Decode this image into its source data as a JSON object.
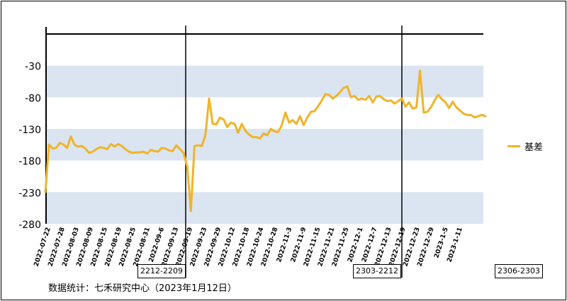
{
  "chart_data": {
    "type": "line",
    "series": [
      {
        "name": "基差",
        "color": "#f0b429",
        "values": [
          -230,
          -155,
          -161,
          -160,
          -152,
          -155,
          -160,
          -142,
          -155,
          -158,
          -157,
          -161,
          -168,
          -166,
          -162,
          -159,
          -160,
          -162,
          -154,
          -158,
          -154,
          -157,
          -162,
          -166,
          -168,
          -167,
          -167,
          -166,
          -169,
          -163,
          -165,
          -166,
          -160,
          -161,
          -164,
          -165,
          -156,
          -162,
          -168,
          -190,
          -260,
          -157,
          -156,
          -157,
          -140,
          -82,
          -122,
          -123,
          -112,
          -115,
          -127,
          -120,
          -122,
          -136,
          -122,
          -133,
          -139,
          -143,
          -143,
          -145,
          -137,
          -140,
          -130,
          -134,
          -135,
          -124,
          -104,
          -120,
          -116,
          -122,
          -110,
          -124,
          -112,
          -103,
          -102,
          -94,
          -85,
          -75,
          -76,
          -82,
          -78,
          -72,
          -65,
          -63,
          -80,
          -78,
          -84,
          -82,
          -84,
          -78,
          -88,
          -79,
          -78,
          -83,
          -86,
          -85,
          -90,
          -86,
          -82,
          -95,
          -88,
          -98,
          -96,
          -38,
          -104,
          -103,
          -96,
          -85,
          -76,
          -83,
          -88,
          -97,
          -87,
          -96,
          -101,
          -106,
          -108,
          -108,
          -112,
          -110,
          -108,
          -110
        ]
      }
    ],
    "x_tick_labels": [
      "2022-07-22",
      "2022-07-28",
      "2022-08-03",
      "2022-08-09",
      "2022-08-15",
      "2022-08-19",
      "2022-08-25",
      "2022-08-31",
      "2022-09-6",
      "2022-09-13",
      "2022-09-19",
      "2022-09-23",
      "2022-09-29",
      "2022-10-12",
      "2022-10-18",
      "2022-10-24",
      "2022-10-28",
      "2022-11-3",
      "2022-11-9",
      "2022-11-15",
      "2022-11-21",
      "2022-11-25",
      "2022-12-1",
      "2022-12-7",
      "2022-12-13",
      "2022-12-19",
      "2022-12-23",
      "2022-12-29",
      "2023-1-5",
      "2023-1-11"
    ],
    "y_tick_labels": [
      "-30",
      "-80",
      "-130",
      "-180",
      "-230",
      "-280"
    ],
    "ylim": [
      -280,
      20
    ],
    "bands": [
      [
        -30,
        -80
      ],
      [
        -130,
        -180
      ],
      [
        -230,
        -280
      ]
    ],
    "band_color": "#dbe5f1",
    "contract_switch_labels": [
      "2212-2209",
      "2303-2212",
      "2306-2303"
    ],
    "legend_position": "right",
    "source_note": "数据统计：七禾研究中心（2023年1月12日）"
  }
}
